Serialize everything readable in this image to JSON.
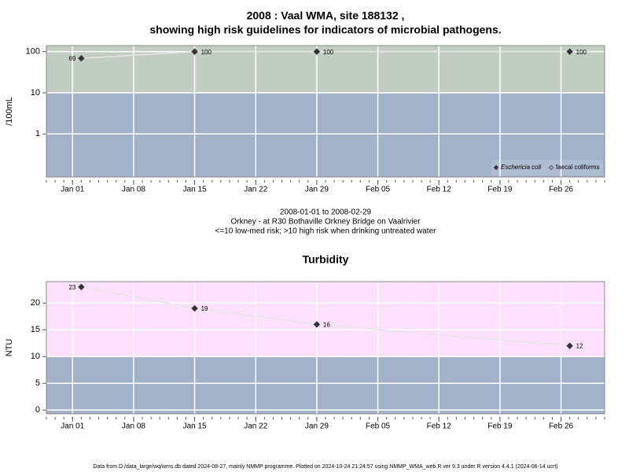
{
  "chart_data": [
    {
      "type": "line",
      "title": [
        "2008 : Vaal WMA, site 188132 ,",
        "showing high risk guidelines for indicators of microbial pathogens."
      ],
      "ylabel": "/100mL",
      "log_y": true,
      "ylim": [
        0.09,
        140
      ],
      "yticks": [
        1,
        10,
        100
      ],
      "xlim": [
        "2007-12-29",
        "2008-03-02"
      ],
      "xticks": [
        {
          "value": "2008-01-01",
          "label": "Jan 01"
        },
        {
          "value": "2008-01-08",
          "label": "Jan 08"
        },
        {
          "value": "2008-01-15",
          "label": "Jan 15"
        },
        {
          "value": "2008-01-22",
          "label": "Jan 22"
        },
        {
          "value": "2008-01-29",
          "label": "Jan 29"
        },
        {
          "value": "2008-02-05",
          "label": "Feb 05"
        },
        {
          "value": "2008-02-12",
          "label": "Feb 12"
        },
        {
          "value": "2008-02-19",
          "label": "Feb 19"
        },
        {
          "value": "2008-02-26",
          "label": "Feb 26"
        }
      ],
      "x": [
        "2008-01-02",
        "2008-01-15",
        "2008-01-29",
        "2008-02-27"
      ],
      "series": [
        {
          "name": "Eschericia coli",
          "color": "#333333",
          "marker": "filled",
          "values": [
            69,
            100,
            100,
            100
          ]
        },
        {
          "name": "faecal coliforms",
          "color": "#555555",
          "marker": "open",
          "values": [
            null,
            null,
            null,
            null
          ]
        }
      ],
      "threshold": 10,
      "band_colors": {
        "above": "#c2cdc2",
        "below": "#a2b2c8"
      },
      "grid": true,
      "legend": "bottom-right",
      "caption": [
        "2008-01-01 to 2008-02-29",
        "Orkney - at R30 Bothaville Orkney Bridge on Vaalrivier",
        "<=10 low-med risk; >10 high risk when drinking untreated water"
      ]
    },
    {
      "type": "line",
      "title": [
        "Turbidity"
      ],
      "ylabel": "NTU",
      "log_y": false,
      "ylim": [
        -0.7,
        24
      ],
      "yticks": [
        0,
        5,
        10,
        15,
        20
      ],
      "xlim": [
        "2007-12-29",
        "2008-03-02"
      ],
      "xticks": [
        {
          "value": "2008-01-01",
          "label": "Jan 01"
        },
        {
          "value": "2008-01-08",
          "label": "Jan 08"
        },
        {
          "value": "2008-01-15",
          "label": "Jan 15"
        },
        {
          "value": "2008-01-22",
          "label": "Jan 22"
        },
        {
          "value": "2008-01-29",
          "label": "Jan 29"
        },
        {
          "value": "2008-02-05",
          "label": "Feb 05"
        },
        {
          "value": "2008-02-12",
          "label": "Feb 12"
        },
        {
          "value": "2008-02-19",
          "label": "Feb 19"
        },
        {
          "value": "2008-02-26",
          "label": "Feb 26"
        }
      ],
      "x": [
        "2008-01-02",
        "2008-01-15",
        "2008-01-29",
        "2008-02-27"
      ],
      "series": [
        {
          "name": "Turbidity",
          "color": "#333333",
          "marker": "filled",
          "values": [
            23,
            19,
            16,
            12
          ]
        }
      ],
      "threshold": 10,
      "band_colors": {
        "above": "#fde0fd",
        "below": "#a2b2c8"
      },
      "grid": true
    }
  ],
  "footer": "Data from D:/data_large/wq/wms.db dated 2024-08-27, mainly NMMP programme. Plotted on 2024-10-24 21:24:57 using NMMP_WMA_web.R ver 9.3 under R version 4.4.1 (2024-06-14 ucrt)"
}
